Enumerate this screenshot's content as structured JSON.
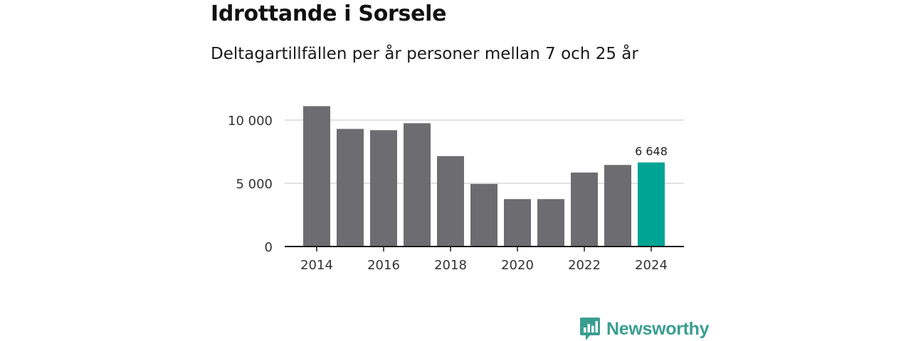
{
  "colors": {
    "bar": "#6d6c71",
    "highlight": "#00a495",
    "grid": "#d9d9d9",
    "axis": "#1a1a1a",
    "brand": "#3a9d91"
  },
  "brand": {
    "name": "Newsworthy",
    "icon": "newsworthy-logo-icon"
  },
  "chart_data": {
    "type": "bar",
    "title": "Idrottande i Sorsele",
    "subtitle": "Deltagartillfällen per år personer mellan 7 och 25 år",
    "xlabel": "",
    "ylabel": "",
    "categories": [
      "2014",
      "2015",
      "2016",
      "2017",
      "2018",
      "2019",
      "2020",
      "2021",
      "2022",
      "2023",
      "2024"
    ],
    "values": [
      11100,
      9300,
      9200,
      9750,
      7150,
      4950,
      3750,
      3750,
      5850,
      6450,
      6648
    ],
    "highlight_index": 10,
    "x_tick_labels": [
      "2014",
      "2016",
      "2018",
      "2020",
      "2022",
      "2024"
    ],
    "y_ticks": [
      {
        "value": 0,
        "label": "0"
      },
      {
        "value": 5000,
        "label": "5 000"
      },
      {
        "value": 10000,
        "label": "10 000"
      }
    ],
    "ylim": [
      0,
      11100
    ],
    "annotations": [
      {
        "index": 10,
        "label": "6 648"
      }
    ],
    "grid": true,
    "legend": "none"
  }
}
